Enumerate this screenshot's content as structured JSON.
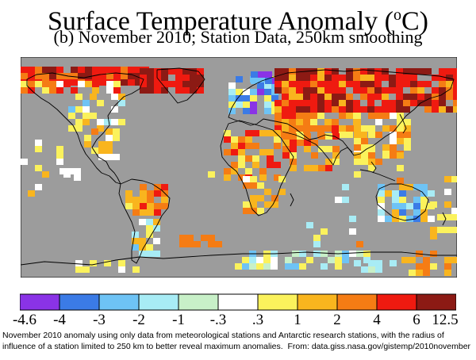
{
  "title": {
    "main": "Surface Temperature Anomaly (",
    "sup": "o",
    "unit": "C)"
  },
  "subtitle": "(b) November 2010; Station Data, 250km smoothing",
  "legend": {
    "breaks": [
      "-4.6",
      "-4",
      "-3",
      "-2",
      "-1",
      "-.3",
      ".3",
      "1",
      "2",
      "4",
      "6",
      "12.5"
    ],
    "colors": [
      "#8a33e6",
      "#3b7be6",
      "#6ec3f5",
      "#a8ecf5",
      "#c8f0c8",
      "#ffffff",
      "#fbf25c",
      "#f9b51e",
      "#f57c14",
      "#ef1a10",
      "#8c1a14"
    ]
  },
  "colors": {
    "ocean": "#9c9c9c",
    "no_data": "#8a8a8a",
    "coast": "#000000"
  },
  "caption": {
    "line1": "November 2010 anomaly using only data from meteorological stations and Antarctic research stations, with the radius of",
    "line2_text": "influence of a station limited to 250 km to better reveal maximum anomalies.",
    "line2_source": "From: data.giss.nasa.gov/gistemp/2010november"
  }
}
